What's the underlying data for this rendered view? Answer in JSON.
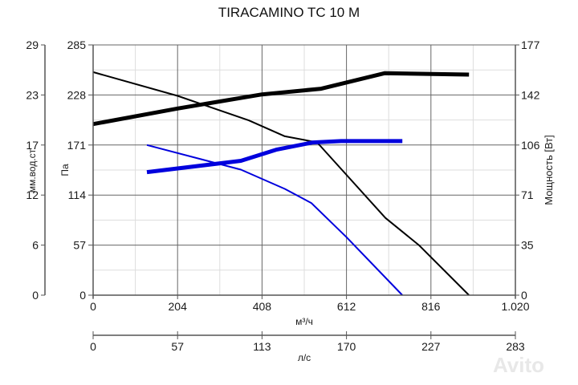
{
  "title": "TIRACAMINO TC 10 M",
  "watermark": "Avito",
  "axes": {
    "left_outer": {
      "label": "мм.вод.ст.",
      "ticks": [
        "29",
        "23",
        "17",
        "12",
        "6",
        "0"
      ]
    },
    "left_inner": {
      "label": "Па",
      "ticks": [
        "285",
        "228",
        "171",
        "114",
        "57",
        "0"
      ]
    },
    "right": {
      "label": "Мощность [Вт]",
      "ticks": [
        "177",
        "142",
        "106",
        "71",
        "35",
        "0"
      ]
    },
    "bottom": {
      "label": "м³/ч",
      "ticks": [
        "0",
        "204",
        "408",
        "612",
        "816",
        "1.020"
      ]
    },
    "bottom2": {
      "label": "л/с",
      "ticks": [
        "0",
        "57",
        "113",
        "170",
        "227",
        "283"
      ]
    }
  },
  "colors": {
    "speed_high": "#000000",
    "speed_low": "#0000dd",
    "grid_major": "#666666",
    "grid_minor": "#dddddd"
  },
  "chart_data": {
    "type": "line",
    "title": "TIRACAMINO TC 10 M",
    "xlabel": "м³/ч",
    "x2label": "л/с",
    "ylabel": "Па",
    "ylabel_outer": "мм.вод.ст.",
    "y2label": "Мощность [Вт]",
    "xlim": [
      0,
      1020
    ],
    "ylim": [
      0,
      285
    ],
    "y2lim": [
      0,
      177
    ],
    "grid": true,
    "legend": "none",
    "series": [
      {
        "name": "Pressure (high speed)",
        "axis": "Па",
        "color": "#000000",
        "width": 2,
        "x": [
          0,
          204,
          376,
          463,
          541,
          612,
          706,
          787,
          908
        ],
        "y": [
          254,
          227,
          199,
          181,
          174,
          137,
          88,
          57,
          0
        ]
      },
      {
        "name": "Power (high speed)",
        "axis": "Мощность [Вт]",
        "color": "#000000",
        "width": 5,
        "x": [
          0,
          204,
          408,
          551,
          704,
          908
        ],
        "y": [
          121,
          132,
          142,
          146,
          157,
          156
        ]
      },
      {
        "name": "Pressure (low speed)",
        "axis": "Па",
        "color": "#0000dd",
        "width": 2,
        "x": [
          130,
          357,
          463,
          527,
          612,
          747
        ],
        "y": [
          171,
          143,
          121,
          105,
          66,
          0
        ]
      },
      {
        "name": "Power (low speed)",
        "axis": "Мощность [Вт]",
        "color": "#0000dd",
        "width": 5,
        "x": [
          130,
          357,
          444,
          531,
          599,
          747
        ],
        "y": [
          87,
          95,
          103,
          108,
          109,
          109
        ]
      }
    ]
  }
}
